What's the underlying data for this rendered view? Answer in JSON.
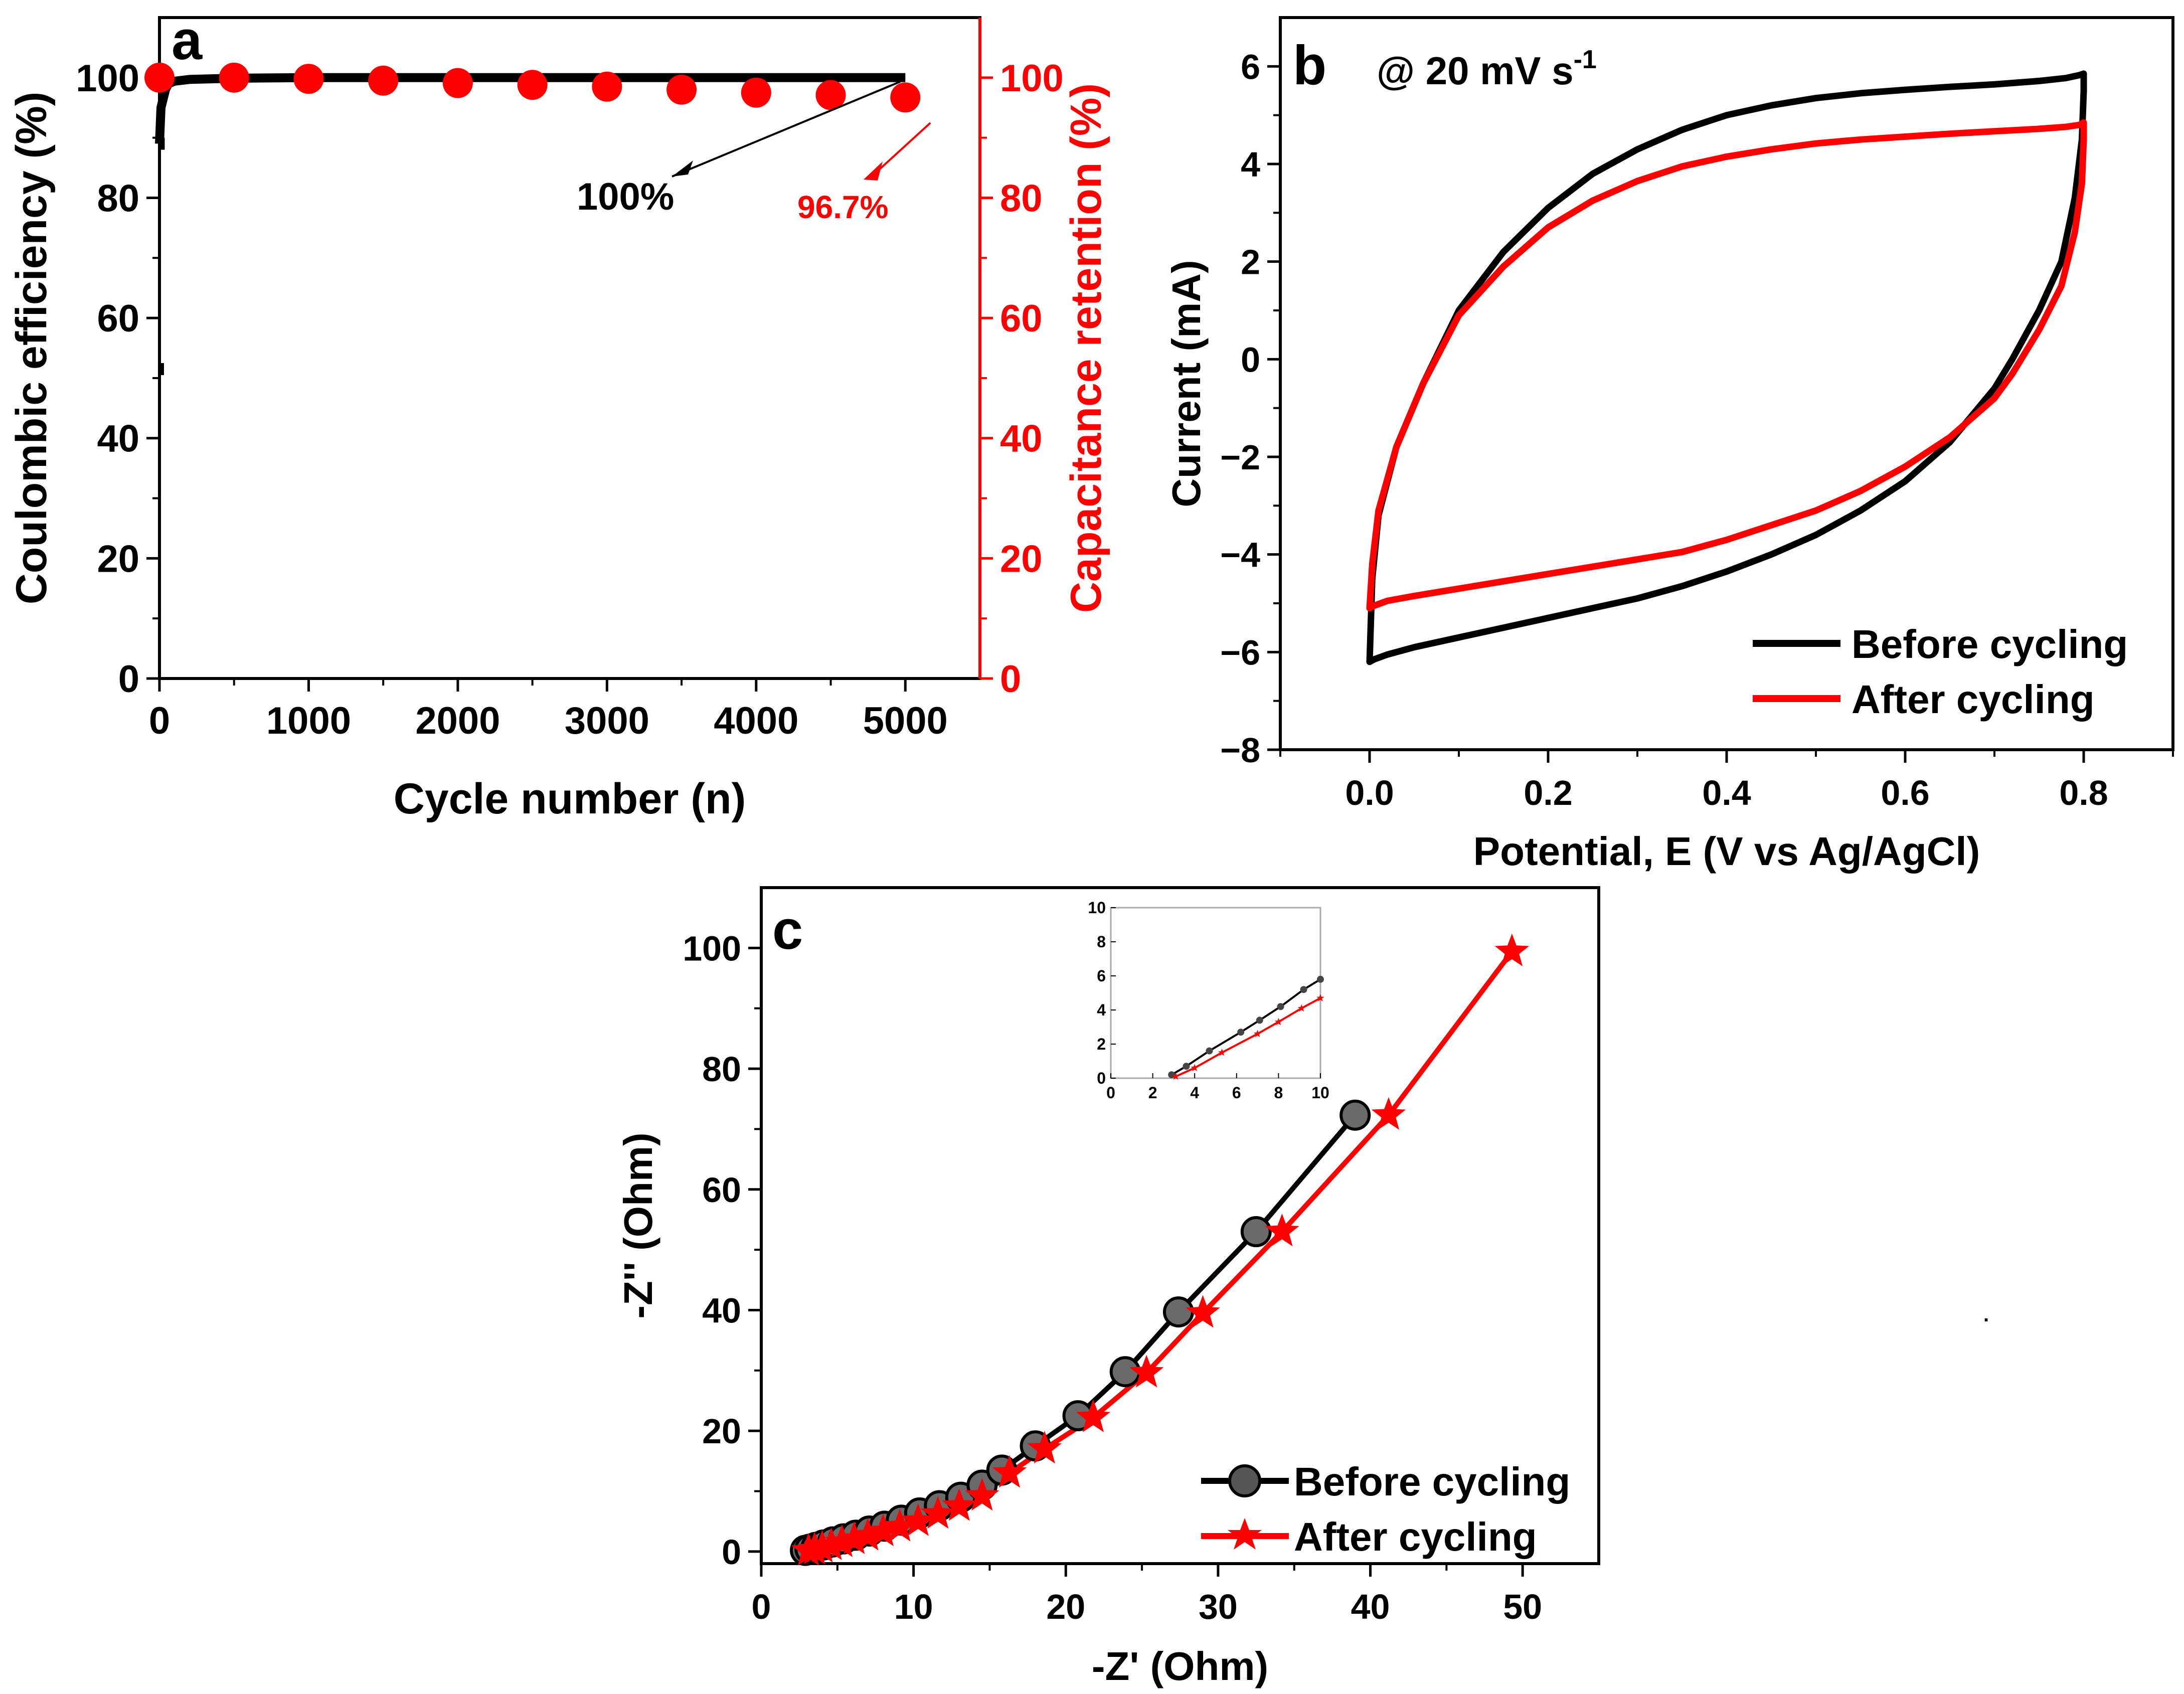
{
  "figure": {
    "colors": {
      "black": "#000000",
      "red": "#ff0000",
      "gray": "#aaaaaa",
      "background": "#ffffff"
    },
    "stray_mark": "."
  },
  "chart_data": [
    {
      "id": "a",
      "panel_label": "a",
      "type": "scatter",
      "xlabel": "Cycle number (n)",
      "ylabel": "Coulombic efficiency (%)",
      "y2label": "Capacitance retention (%)",
      "xlim": [
        0,
        5500
      ],
      "ylim": [
        0,
        110
      ],
      "y2lim": [
        0,
        110
      ],
      "xticks": [
        0,
        1000,
        2000,
        3000,
        4000,
        5000
      ],
      "yticks": [
        0,
        20,
        40,
        60,
        80,
        100
      ],
      "y2ticks": [
        0,
        20,
        40,
        60,
        80,
        100
      ],
      "series": [
        {
          "name": "Coulombic efficiency",
          "axis": "left",
          "color": "#000000",
          "style": "line",
          "x": [
            0,
            10,
            40,
            60,
            100,
            200,
            500,
            1000,
            2000,
            3000,
            4000,
            5000
          ],
          "y": [
            89,
            95,
            98,
            99,
            99.4,
            99.7,
            99.9,
            100,
            100,
            100,
            100,
            100
          ],
          "outlier_x": [
            10,
            15
          ],
          "outlier_y": [
            51.5,
            89
          ]
        },
        {
          "name": "Capacitance retention",
          "axis": "right",
          "color": "#ff0000",
          "style": "markers",
          "x": [
            0,
            500,
            1000,
            1500,
            2000,
            2500,
            3000,
            3500,
            4000,
            4500,
            5000
          ],
          "y": [
            100,
            100,
            99.8,
            99.5,
            99.1,
            98.8,
            98.5,
            98,
            97.5,
            97.1,
            96.7
          ]
        }
      ],
      "annotations": [
        {
          "text": "100%",
          "color": "#000000",
          "target_x": 5000,
          "target_y": 100
        },
        {
          "text": "96.7%",
          "color": "#ff0000",
          "target_x": 5000,
          "target_y": 96.7
        }
      ]
    },
    {
      "id": "b",
      "panel_label": "b",
      "type": "line",
      "scan_rate_label": "@ 20 mV s",
      "scan_rate_exponent": "-1",
      "xlabel": "Potential, E (V vs Ag/AgCl)",
      "ylabel": "Current (mA)",
      "xlim": [
        -0.1,
        0.9
      ],
      "ylim": [
        -8,
        7
      ],
      "xticks": [
        0.0,
        0.2,
        0.4,
        0.6,
        0.8
      ],
      "xtick_labels": [
        "0.0",
        "0.2",
        "0.4",
        "0.6",
        "0.8"
      ],
      "yticks": [
        -8,
        -6,
        -4,
        -2,
        0,
        2,
        4,
        6
      ],
      "ytick_labels": [
        "−8",
        "−6",
        "−4",
        "−2",
        "0",
        "2",
        "4",
        "6"
      ],
      "legend": [
        "Before cycling",
        "After cycling"
      ],
      "legend_position": "bottom-right",
      "series": [
        {
          "name": "Before cycling",
          "color": "#000000",
          "x": [
            0,
            0.003,
            0.01,
            0.03,
            0.06,
            0.1,
            0.15,
            0.2,
            0.25,
            0.3,
            0.35,
            0.4,
            0.45,
            0.5,
            0.55,
            0.6,
            0.65,
            0.7,
            0.75,
            0.78,
            0.795,
            0.8,
            0.8,
            0.798,
            0.79,
            0.775,
            0.75,
            0.72,
            0.7,
            0.65,
            0.6,
            0.55,
            0.5,
            0.45,
            0.4,
            0.35,
            0.3,
            0.25,
            0.2,
            0.15,
            0.1,
            0.05,
            0.02,
            0.005,
            0
          ],
          "y": [
            -6.2,
            -4.5,
            -3.2,
            -1.8,
            -0.5,
            1.0,
            2.2,
            3.1,
            3.8,
            4.3,
            4.7,
            5.0,
            5.2,
            5.35,
            5.45,
            5.52,
            5.58,
            5.63,
            5.7,
            5.76,
            5.82,
            5.85,
            5.5,
            4.5,
            3.3,
            2.0,
            1.0,
            0.0,
            -0.6,
            -1.7,
            -2.5,
            -3.1,
            -3.6,
            -4.0,
            -4.35,
            -4.65,
            -4.9,
            -5.1,
            -5.3,
            -5.5,
            -5.7,
            -5.9,
            -6.05,
            -6.15,
            -6.2
          ]
        },
        {
          "name": "After cycling",
          "color": "#ff0000",
          "x": [
            0,
            0.003,
            0.01,
            0.03,
            0.06,
            0.1,
            0.15,
            0.2,
            0.25,
            0.3,
            0.35,
            0.4,
            0.45,
            0.5,
            0.55,
            0.6,
            0.65,
            0.7,
            0.75,
            0.78,
            0.795,
            0.8,
            0.8,
            0.798,
            0.79,
            0.775,
            0.75,
            0.72,
            0.7,
            0.65,
            0.6,
            0.55,
            0.5,
            0.45,
            0.4,
            0.35,
            0.3,
            0.25,
            0.2,
            0.15,
            0.1,
            0.05,
            0.02,
            0.005,
            0
          ],
          "y": [
            -5.1,
            -4.2,
            -3.1,
            -1.8,
            -0.5,
            0.9,
            1.9,
            2.7,
            3.25,
            3.65,
            3.95,
            4.15,
            4.3,
            4.42,
            4.5,
            4.56,
            4.62,
            4.67,
            4.72,
            4.76,
            4.8,
            4.85,
            4.5,
            3.6,
            2.6,
            1.5,
            0.6,
            -0.3,
            -0.8,
            -1.6,
            -2.2,
            -2.7,
            -3.1,
            -3.4,
            -3.7,
            -3.95,
            -4.1,
            -4.25,
            -4.4,
            -4.55,
            -4.7,
            -4.85,
            -4.95,
            -5.05,
            -5.1
          ]
        }
      ]
    },
    {
      "id": "c",
      "panel_label": "c",
      "type": "line",
      "xlabel": "-Z' (Ohm)",
      "ylabel": "-Z'' (Ohm)",
      "xlim": [
        0,
        55
      ],
      "ylim": [
        -2,
        110
      ],
      "xticks": [
        0,
        10,
        20,
        30,
        40,
        50
      ],
      "yticks": [
        0,
        20,
        40,
        60,
        80,
        100
      ],
      "legend": [
        "Before cycling",
        "After cycling"
      ],
      "legend_position": "bottom-right",
      "series": [
        {
          "name": "Before cycling",
          "color": "#000000",
          "marker": "circle",
          "x": [
            2.9,
            3.2,
            3.6,
            4.1,
            4.7,
            5.4,
            6.2,
            7.1,
            8.1,
            9.2,
            10.4,
            11.7,
            13.1,
            14.5,
            15.8,
            18.0,
            20.8,
            23.9,
            27.4,
            32.5,
            39.0
          ],
          "y": [
            0.2,
            0.4,
            0.7,
            1.1,
            1.6,
            2.1,
            2.7,
            3.4,
            4.2,
            5.2,
            6.4,
            7.6,
            9.0,
            11.0,
            13.5,
            17.5,
            22.5,
            29.8,
            39.7,
            53.0,
            72.3
          ]
        },
        {
          "name": "After cycling",
          "color": "#ff0000",
          "marker": "star",
          "x": [
            3.1,
            3.5,
            4.0,
            4.6,
            5.3,
            6.1,
            7.0,
            8.0,
            9.1,
            10.3,
            11.6,
            13.0,
            14.5,
            16.3,
            18.6,
            21.8,
            25.3,
            29.0,
            34.2,
            41.2,
            49.3
          ],
          "y": [
            0.1,
            0.3,
            0.6,
            1.0,
            1.5,
            2.0,
            2.6,
            3.3,
            4.1,
            5.0,
            6.2,
            7.5,
            9.2,
            13.0,
            17.0,
            22.2,
            29.6,
            39.5,
            53.0,
            72.3,
            99.4
          ]
        }
      ],
      "inset": {
        "xlim": [
          0,
          10
        ],
        "ylim": [
          0,
          10
        ],
        "xticks": [
          0,
          2,
          4,
          6,
          8,
          10
        ],
        "yticks": [
          0,
          2,
          4,
          6,
          8,
          10
        ],
        "series": [
          {
            "name": "Before cycling",
            "color": "#000000",
            "x": [
              2.9,
              3.6,
              4.7,
              6.2,
              7.1,
              8.1,
              9.2,
              10.0
            ],
            "y": [
              0.2,
              0.7,
              1.6,
              2.7,
              3.4,
              4.2,
              5.2,
              5.8
            ]
          },
          {
            "name": "After cycling",
            "color": "#ff0000",
            "x": [
              3.1,
              4.0,
              5.3,
              7.0,
              8.0,
              9.1,
              10.0
            ],
            "y": [
              0.1,
              0.6,
              1.5,
              2.6,
              3.3,
              4.1,
              4.7
            ]
          }
        ]
      }
    }
  ]
}
